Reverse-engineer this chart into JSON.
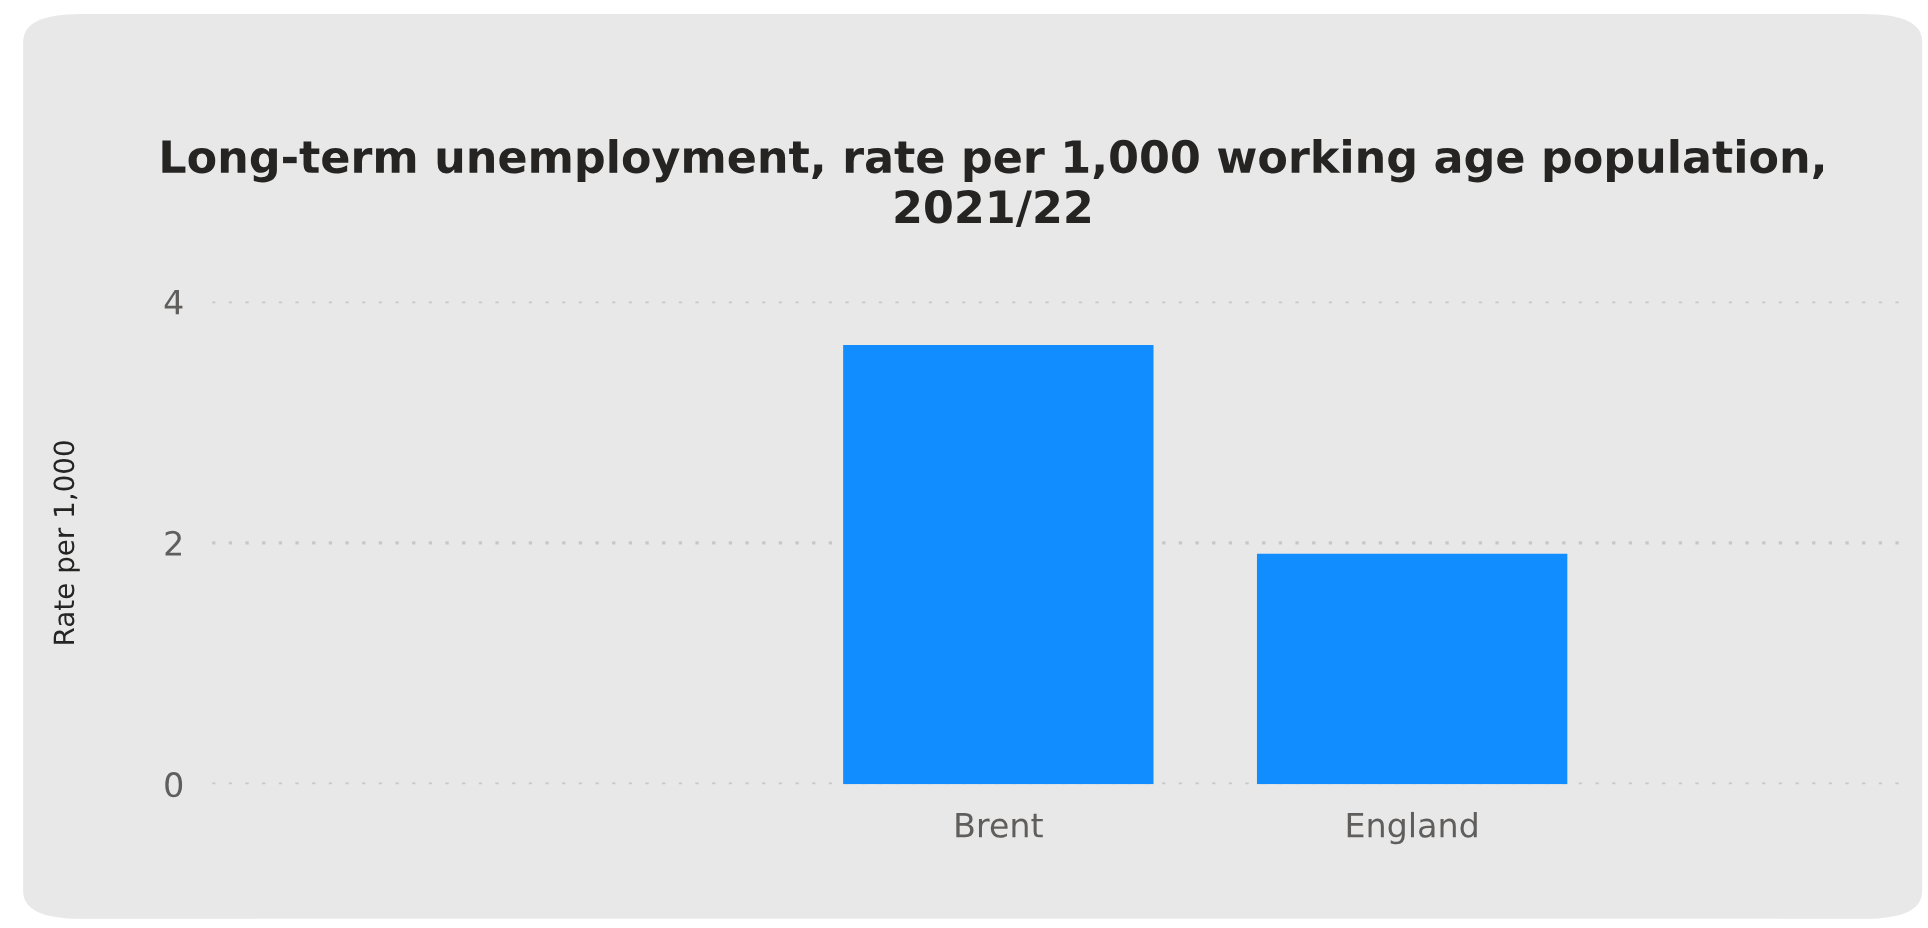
{
  "chart_data": {
    "type": "bar",
    "title": "Long-term unemployment, rate per 1,000 working age population, 2021/22",
    "ylabel": "Rate per 1,000",
    "categories": [
      "Brent",
      "England"
    ],
    "values": [
      3.64,
      1.91
    ],
    "color": "#118dff",
    "ylim": [
      0,
      4
    ],
    "yticks": [
      0,
      2,
      4
    ],
    "grid": "y"
  }
}
